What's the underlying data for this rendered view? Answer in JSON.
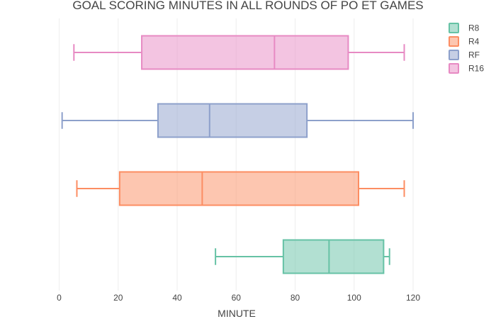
{
  "chart_data": {
    "type": "box",
    "orientation": "horizontal",
    "title": "GOAL SCORING MINUTES IN ALL ROUNDS OF PO ET GAMES",
    "xlabel": "MINUTE",
    "ylabel": "",
    "xlim": [
      -3,
      124
    ],
    "xticks": [
      0,
      20,
      40,
      60,
      80,
      100,
      120
    ],
    "grid": true,
    "legend_position": "top-right",
    "series": [
      {
        "name": "R8",
        "color": "#66c2a5",
        "min": 53,
        "q1": 76,
        "median": 91.5,
        "q3": 110,
        "max": 112
      },
      {
        "name": "R4",
        "color": "#fc8d62",
        "min": 6,
        "q1": 20.5,
        "median": 48.5,
        "q3": 101.5,
        "max": 117
      },
      {
        "name": "RF",
        "color": "#8da0cb",
        "min": 1,
        "q1": 33.5,
        "median": 51,
        "q3": 84,
        "max": 120
      },
      {
        "name": "R16",
        "color": "#e78ac3",
        "min": 5,
        "q1": 28,
        "median": 73,
        "q3": 98,
        "max": 117
      }
    ]
  }
}
